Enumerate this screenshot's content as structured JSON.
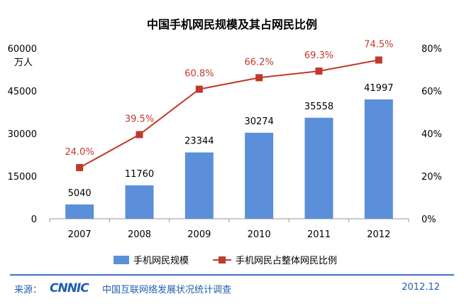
{
  "chart_data": {
    "type": "bar",
    "title": "中国手机网民规模及其占网民比例",
    "categories": [
      "2007",
      "2008",
      "2009",
      "2010",
      "2011",
      "2012"
    ],
    "series": [
      {
        "name": "手机网民规模",
        "type": "bar",
        "axis": "left",
        "values": [
          5040,
          11760,
          23344,
          30274,
          35558,
          41997
        ],
        "labels": [
          "5040",
          "11760",
          "23344",
          "30274",
          "35558",
          "41997"
        ],
        "color": "#5b8fd9"
      },
      {
        "name": "手机网民占整体网民比例",
        "type": "line",
        "axis": "right",
        "values": [
          24.0,
          39.5,
          60.8,
          66.2,
          69.3,
          74.5
        ],
        "labels": [
          "24.0%",
          "39.5%",
          "60.8%",
          "66.2%",
          "69.3%",
          "74.5%"
        ],
        "color": "#c0392b"
      }
    ],
    "y_left": {
      "unit": "万人",
      "ylim": [
        0,
        60000
      ],
      "ticks": [
        "0",
        "15000",
        "30000",
        "45000",
        "60000"
      ]
    },
    "y_right": {
      "ylim": [
        0,
        80
      ],
      "ticks": [
        "0%",
        "20%",
        "40%",
        "60%",
        "80%"
      ]
    },
    "grid": false,
    "legend_position": "bottom"
  },
  "footer": {
    "source_label": "来源：",
    "logo_text": "CNNIC",
    "source_name": "中国互联网络发展状况统计调查",
    "date": "2012.12"
  },
  "colors": {
    "bar": "#5b8fd9",
    "line": "#c0392b",
    "label_line": "#c0392b",
    "footer": "#1f5fae"
  }
}
